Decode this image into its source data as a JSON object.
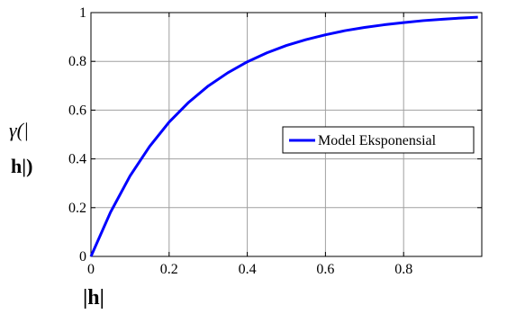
{
  "chart_data": {
    "type": "line",
    "title": "",
    "xlabel": "|h|",
    "ylabel_line1": "γ(|",
    "ylabel_line2": "h|)",
    "xlim": [
      0,
      1
    ],
    "ylim": [
      0,
      1
    ],
    "xticks": [
      0,
      0.2,
      0.4,
      0.6,
      0.8
    ],
    "xtick_labels": [
      "0",
      "0.2",
      "0.4",
      "0.6",
      "0.8"
    ],
    "yticks": [
      0,
      0.2,
      0.4,
      0.6,
      0.8,
      1
    ],
    "ytick_labels": [
      "0",
      "0.2",
      "0.4",
      "0.6",
      "0.8",
      "1"
    ],
    "grid": true,
    "legend_position": "center-right",
    "series": [
      {
        "name": "Model Eksponensial",
        "color": "#0000ff",
        "x": [
          0,
          0.05,
          0.1,
          0.15,
          0.2,
          0.25,
          0.3,
          0.35,
          0.4,
          0.45,
          0.5,
          0.55,
          0.6,
          0.65,
          0.7,
          0.75,
          0.8,
          0.85,
          0.9,
          0.95,
          0.99
        ],
        "y": [
          0,
          0.181,
          0.33,
          0.451,
          0.551,
          0.632,
          0.699,
          0.753,
          0.798,
          0.835,
          0.865,
          0.889,
          0.909,
          0.926,
          0.939,
          0.95,
          0.959,
          0.967,
          0.973,
          0.978,
          0.981
        ]
      }
    ]
  }
}
